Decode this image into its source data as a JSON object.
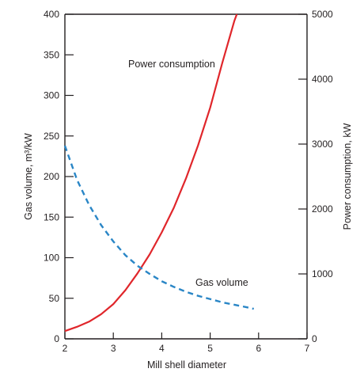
{
  "chart_data": {
    "type": "line",
    "title": "",
    "xlabel": "Mill shell diameter",
    "ylabel_left": "Gas volume, m³/kW",
    "ylabel_right": "Power consumption, kW",
    "xlim": [
      2,
      7
    ],
    "ylim_left": [
      0,
      400
    ],
    "ylim_right": [
      0,
      5000
    ],
    "x_ticks": [
      2,
      3,
      4,
      5,
      6,
      7
    ],
    "y_ticks_left": [
      0,
      50,
      100,
      150,
      200,
      250,
      300,
      350,
      400
    ],
    "y_ticks_right": [
      0,
      1000,
      2000,
      3000,
      4000,
      5000
    ],
    "grid": false,
    "legend": "none",
    "series": [
      {
        "name": "Power consumption",
        "axis": "right",
        "style": "solid",
        "color": "#e0262b",
        "x": [
          2.0,
          2.25,
          2.5,
          2.75,
          3.0,
          3.25,
          3.5,
          3.75,
          4.0,
          4.25,
          4.5,
          4.75,
          5.0,
          5.25,
          5.5,
          5.55
        ],
        "y": [
          120,
          185,
          265,
          380,
          535,
          750,
          1010,
          1300,
          1640,
          2020,
          2470,
          2980,
          3560,
          4250,
          4900,
          5000
        ]
      },
      {
        "name": "Gas volume",
        "axis": "left",
        "style": "dashed",
        "color": "#2a86c6",
        "x": [
          2.0,
          2.25,
          2.5,
          2.75,
          3.0,
          3.25,
          3.5,
          3.75,
          4.0,
          4.25,
          4.5,
          4.75,
          5.0,
          5.25,
          5.5,
          5.75,
          5.9
        ],
        "y": [
          238,
          196,
          165,
          140,
          120,
          103,
          90,
          80,
          71,
          64,
          58,
          53,
          49,
          45,
          42,
          39,
          37
        ]
      }
    ],
    "annotations": [
      {
        "text": "Power consumption",
        "series": 0
      },
      {
        "text": "Gas volume",
        "series": 1
      }
    ]
  }
}
